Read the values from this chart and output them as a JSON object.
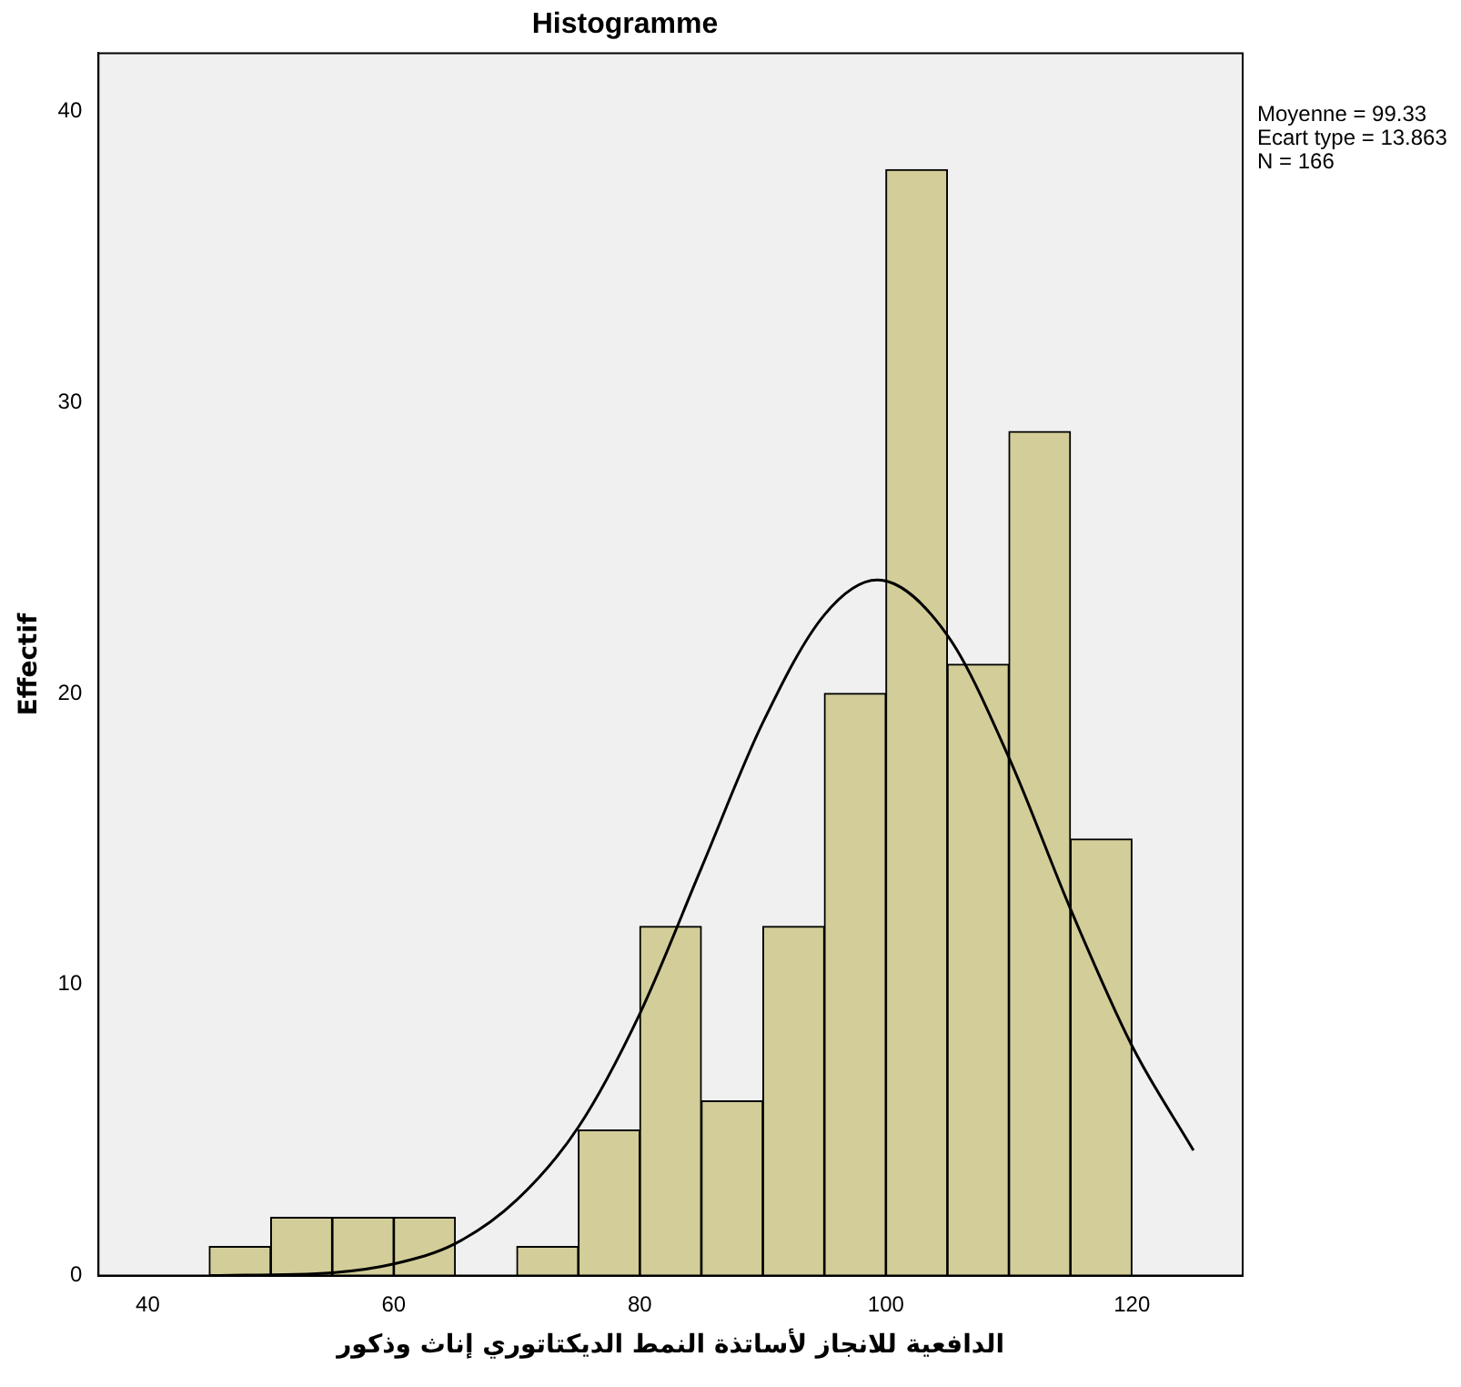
{
  "chart_data": {
    "type": "histogram",
    "title": "Histogramme",
    "xlabel": "الدافعية للانجاز لأساتذة النمط الديكتاتوري إناث وذكور",
    "ylabel": "Effectif",
    "bins": [
      45,
      50,
      55,
      60,
      65,
      70,
      75,
      80,
      85,
      90,
      95,
      100,
      105,
      110,
      115,
      120
    ],
    "values": [
      1,
      2,
      2,
      2,
      0,
      1,
      5,
      12,
      6,
      12,
      20,
      38,
      21,
      29,
      15
    ],
    "color": "#d3ce99",
    "xlim": [
      36,
      129
    ],
    "xticks": [
      40,
      60,
      80,
      100,
      120
    ],
    "ylim": [
      0,
      42
    ],
    "yticks": [
      0,
      10,
      20,
      30,
      40
    ],
    "grid": false,
    "legend": false,
    "annotations": [
      "Moyenne = 99.33",
      "Ecart type = 13.863",
      "N = 166"
    ],
    "series": [
      {
        "type": "line",
        "color": "#000000",
        "x": [
          45,
          55,
          60,
          65,
          70,
          75,
          80,
          85,
          90,
          95,
          99.3,
          105,
          110,
          115,
          120,
          125
        ],
        "values": [
          0,
          0.1,
          0.4,
          1.1,
          2.6,
          5.1,
          9,
          14,
          19,
          22.7,
          23.9,
          22,
          17.8,
          12.6,
          7.9,
          4.3
        ]
      }
    ]
  }
}
